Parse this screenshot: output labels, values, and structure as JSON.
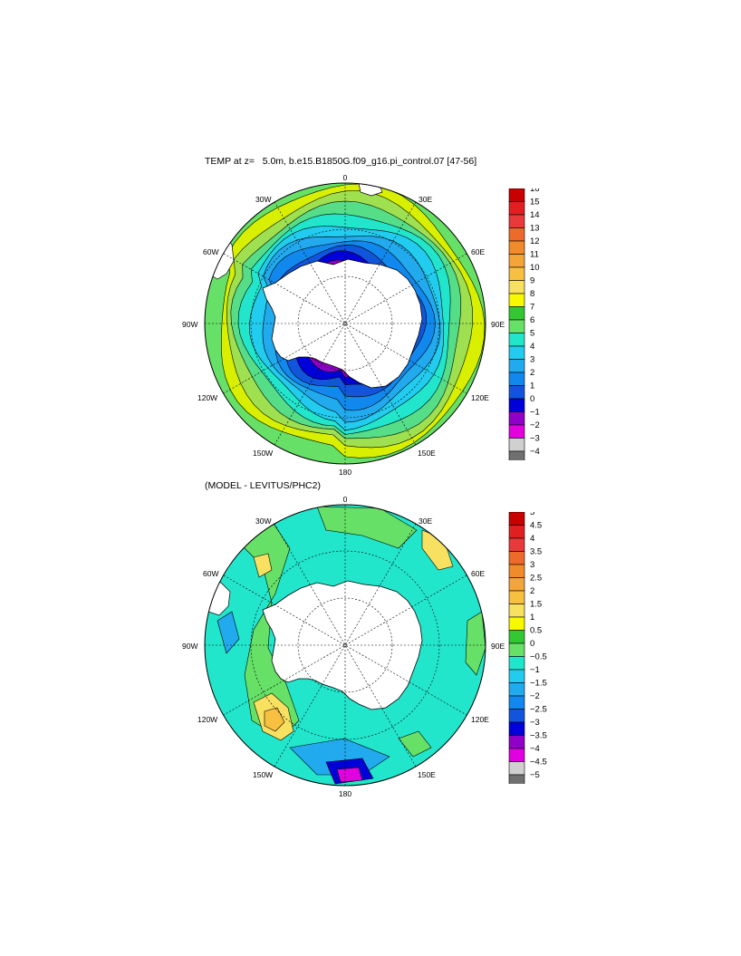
{
  "panels": [
    {
      "title": "TEMP at z=   5.0m, b.e15.B1850G.f09_g16.pi_control.07 [47-56]",
      "lon_labels": {
        "n": "0",
        "s": "180",
        "w": "90W",
        "e": "90E",
        "w30": "30W",
        "e30": "30E",
        "w60": "60W",
        "e60": "60E",
        "w120": "120W",
        "e120": "120E",
        "w150": "150W",
        "e150": "150E"
      },
      "colorbar": {
        "labels": [
          "16",
          "15",
          "14",
          "13",
          "12",
          "11",
          "10",
          "9",
          "8",
          "7",
          "6",
          "5",
          "4",
          "3",
          "2",
          "1",
          "0",
          "−1",
          "−2",
          "−3",
          "−4"
        ],
        "colors": [
          "#c80000",
          "#e02020",
          "#e83a3a",
          "#ee6a2a",
          "#f08a2a",
          "#f4a53a",
          "#f8c040",
          "#f8e060",
          "#f8f800",
          "#33c833",
          "#66e066",
          "#22e6cc",
          "#22ccee",
          "#22aaee",
          "#1188ee",
          "#1155dd",
          "#0000d8",
          "#9000c8",
          "#e000e0",
          "#d0d0d0",
          "#707070"
        ]
      },
      "rings": [
        "#d8f000",
        "#9ee050",
        "#55dd88",
        "#22e6cc",
        "#22ccee",
        "#22aaee",
        "#1188ee",
        "#1155dd",
        "#0000d8",
        "#9000c8",
        "#e000e0"
      ]
    },
    {
      "title": "(MODEL - LEVITUS/PHC2)",
      "lon_labels": {
        "n": "0",
        "s": "180",
        "w": "90W",
        "e": "90E",
        "w30": "30W",
        "e30": "30E",
        "w60": "60W",
        "e60": "60E",
        "w120": "120W",
        "e120": "120E",
        "w150": "150W",
        "e150": "150E"
      },
      "colorbar": {
        "labels": [
          "5",
          "4.5",
          "4",
          "3.5",
          "3",
          "2.5",
          "2",
          "1.5",
          "1",
          "0.5",
          "0",
          "−0.5",
          "−1",
          "−1.5",
          "−2",
          "−2.5",
          "−3",
          "−3.5",
          "−4",
          "−4.5",
          "−5"
        ],
        "colors": [
          "#c80000",
          "#e02020",
          "#e83a3a",
          "#ee6a2a",
          "#f08a2a",
          "#f4a53a",
          "#f8c040",
          "#f8e060",
          "#f8f800",
          "#33c833",
          "#66e066",
          "#22e6cc",
          "#22ccee",
          "#22aaee",
          "#1188ee",
          "#1155dd",
          "#0000d8",
          "#9000c8",
          "#e000e0",
          "#d0d0d0",
          "#707070"
        ]
      },
      "field_colors": {
        "base": "#22e6cc",
        "warm1": "#66e066",
        "warm2": "#f8e060",
        "warm3": "#f8c040",
        "cold1": "#22aaee",
        "cold2": "#0000d8",
        "cold3": "#e000e0"
      }
    }
  ],
  "colors": {
    "land": "#ffffff",
    "line": "#000000"
  }
}
